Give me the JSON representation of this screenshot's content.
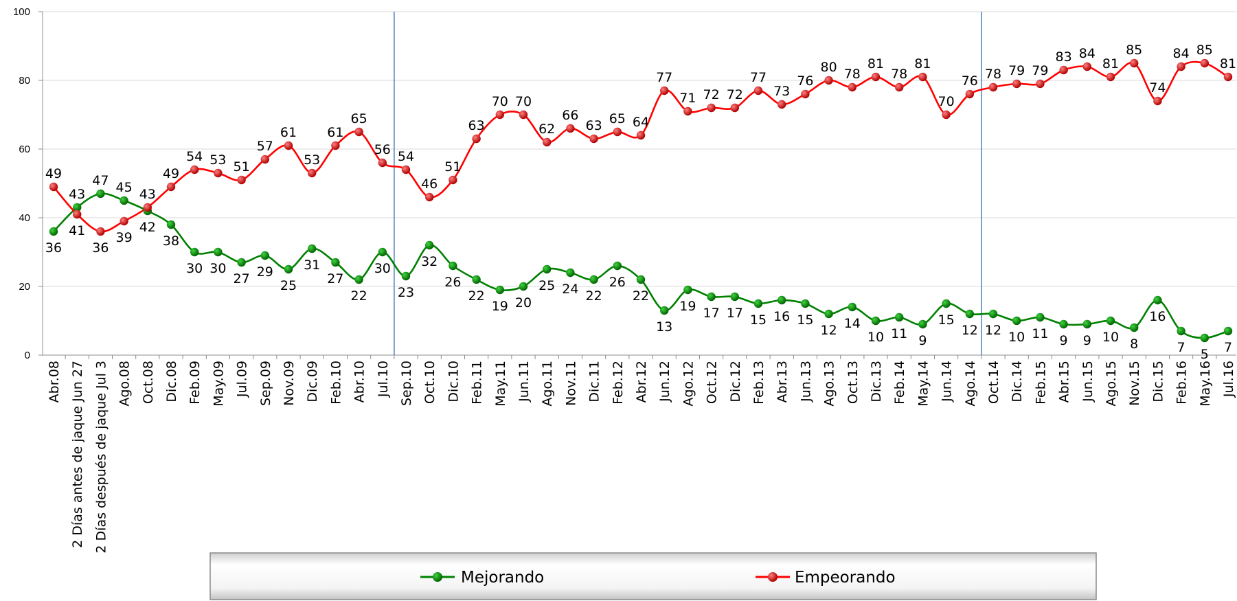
{
  "chart_data": {
    "type": "line",
    "categories": [
      "Abr.08",
      "2 Días antes de jaque Jun 27",
      "2 Días después de jaque Jul 3",
      "Ago.08",
      "Oct.08",
      "Dic.08",
      "Feb.09",
      "May.09",
      "Jul.09",
      "Sep.09",
      "Nov.09",
      "Dic.09",
      "Feb.10",
      "Abr.10",
      "Jul.10",
      "Sep.10",
      "Oct.10",
      "Dic.10",
      "Feb.11",
      "May.11",
      "Jun.11",
      "Ago.11",
      "Nov.11",
      "Dic.11",
      "Feb.12",
      "Abr.12",
      "Jun.12",
      "Ago.12",
      "Oct.12",
      "Dic.12",
      "Feb.13",
      "Abr.13",
      "Jun.13",
      "Ago.13",
      "Oct.13",
      "Dic.13",
      "Feb.14",
      "May.14",
      "Jun.14",
      "Ago.14",
      "Oct.14",
      "Dic.14",
      "Feb.15",
      "Abr.15",
      "Jun.15",
      "Ago.15",
      "Nov.15",
      "Dic.15",
      "Feb.16",
      "May.16",
      "Jul.16"
    ],
    "series": [
      {
        "name": "Mejorando",
        "color": "#008000",
        "values": [
          36,
          43,
          47,
          45,
          42,
          38,
          30,
          30,
          27,
          29,
          25,
          31,
          27,
          22,
          30,
          23,
          32,
          26,
          22,
          19,
          20,
          25,
          24,
          22,
          26,
          22,
          13,
          19,
          17,
          17,
          15,
          16,
          15,
          12,
          14,
          10,
          11,
          9,
          15,
          12,
          12,
          10,
          11,
          9,
          9,
          10,
          8,
          16,
          7,
          5,
          7
        ]
      },
      {
        "name": "Empeorando",
        "color": "#ff0000",
        "values": [
          49,
          41,
          36,
          39,
          43,
          49,
          54,
          53,
          51,
          57,
          61,
          53,
          61,
          65,
          56,
          54,
          46,
          51,
          63,
          70,
          70,
          62,
          66,
          63,
          65,
          64,
          77,
          71,
          72,
          72,
          77,
          73,
          76,
          80,
          78,
          81,
          78,
          81,
          70,
          76,
          78,
          79,
          79,
          83,
          84,
          81,
          85,
          74,
          84,
          85,
          81
        ]
      }
    ],
    "ylim": [
      0,
      100
    ],
    "yticks": [
      "0",
      "20",
      "40",
      "60",
      "80",
      "100"
    ],
    "grid": true,
    "vlines_after": [
      "Jul.10",
      "Ago.14"
    ],
    "legend_position": "bottom"
  }
}
